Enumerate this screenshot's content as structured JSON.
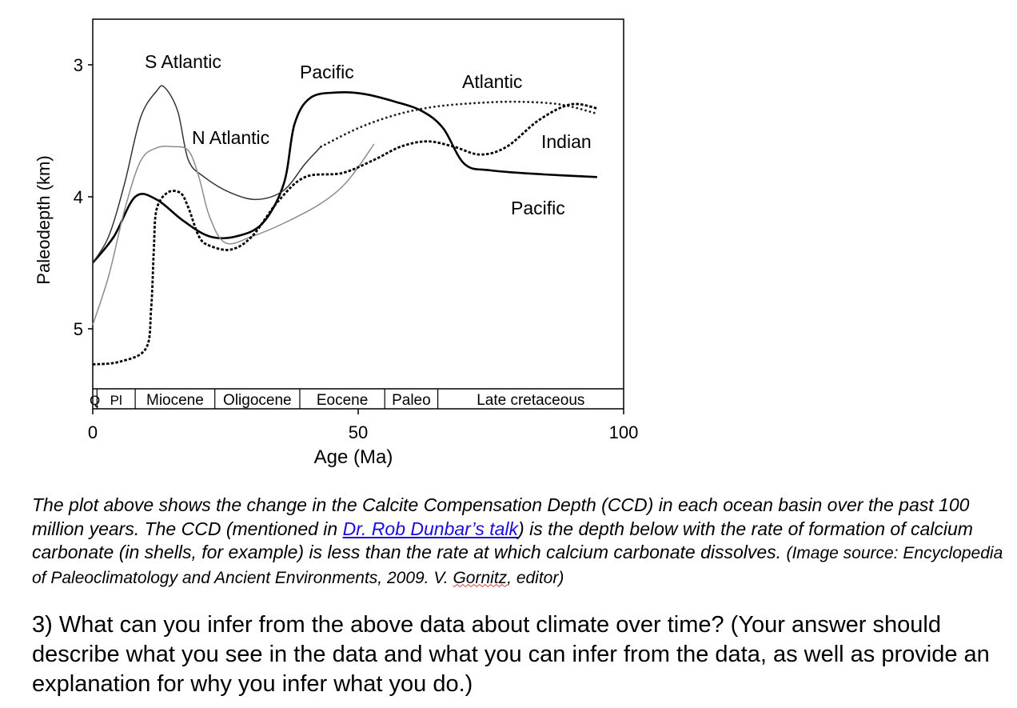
{
  "chart_data": {
    "type": "line",
    "xlabel": "Age (Ma)",
    "ylabel": "Paleodepth (km)",
    "xlim": [
      0,
      100
    ],
    "ylim": [
      5.35,
      2.65
    ],
    "y_inverted": true,
    "xticks": [
      0,
      50,
      100
    ],
    "yticks": [
      3,
      4,
      5
    ],
    "grid": false,
    "epochs": [
      {
        "label": "Q",
        "start": 0,
        "end": 0.8
      },
      {
        "label": "Pl",
        "start": 0.8,
        "end": 8
      },
      {
        "label": "Miocene",
        "start": 8,
        "end": 23
      },
      {
        "label": "Oligocene",
        "start": 23,
        "end": 39
      },
      {
        "label": "Eocene",
        "start": 39,
        "end": 55
      },
      {
        "label": "Paleo",
        "start": 55,
        "end": 65
      },
      {
        "label": "Late cretaceous",
        "start": 65,
        "end": 100
      }
    ],
    "series": [
      {
        "name": "Pacific",
        "style": "solid-thick",
        "points": [
          [
            0,
            4.5
          ],
          [
            4,
            4.3
          ],
          [
            8,
            4.0
          ],
          [
            12,
            4.02
          ],
          [
            17,
            4.18
          ],
          [
            22,
            4.3
          ],
          [
            27,
            4.3
          ],
          [
            32,
            4.2
          ],
          [
            36,
            3.9
          ],
          [
            38,
            3.45
          ],
          [
            41,
            3.25
          ],
          [
            46,
            3.21
          ],
          [
            51,
            3.22
          ],
          [
            57,
            3.28
          ],
          [
            62,
            3.35
          ],
          [
            66,
            3.48
          ],
          [
            70,
            3.75
          ],
          [
            75,
            3.8
          ],
          [
            85,
            3.83
          ],
          [
            95,
            3.85
          ]
        ]
      },
      {
        "name": "S Atlantic",
        "style": "solid-thin",
        "points": [
          [
            0,
            4.5
          ],
          [
            3,
            4.3
          ],
          [
            6,
            3.9
          ],
          [
            9,
            3.4
          ],
          [
            12,
            3.2
          ],
          [
            13.5,
            3.17
          ],
          [
            16,
            3.35
          ],
          [
            18,
            3.72
          ],
          [
            21,
            3.85
          ],
          [
            26,
            3.97
          ],
          [
            31,
            4.02
          ],
          [
            36,
            3.95
          ],
          [
            40,
            3.75
          ],
          [
            43,
            3.62
          ]
        ]
      },
      {
        "name": "N Atlantic",
        "style": "solid-gray",
        "points": [
          [
            0,
            4.97
          ],
          [
            3,
            4.6
          ],
          [
            6,
            4.1
          ],
          [
            9,
            3.73
          ],
          [
            12,
            3.63
          ],
          [
            15,
            3.62
          ],
          [
            18,
            3.65
          ],
          [
            20,
            3.85
          ],
          [
            22,
            4.15
          ],
          [
            25,
            4.35
          ],
          [
            30,
            4.3
          ],
          [
            36,
            4.2
          ],
          [
            43,
            4.05
          ],
          [
            48,
            3.88
          ],
          [
            53,
            3.6
          ]
        ]
      },
      {
        "name": "Atlantic",
        "style": "dotted",
        "points": [
          [
            43,
            3.62
          ],
          [
            50,
            3.48
          ],
          [
            57,
            3.38
          ],
          [
            64,
            3.32
          ],
          [
            72,
            3.29
          ],
          [
            80,
            3.28
          ],
          [
            88,
            3.3
          ],
          [
            95,
            3.37
          ]
        ]
      },
      {
        "name": "Indian",
        "style": "dashed",
        "points": [
          [
            0,
            5.27
          ],
          [
            5,
            5.25
          ],
          [
            10,
            5.15
          ],
          [
            11,
            4.85
          ],
          [
            11.5,
            4.4
          ],
          [
            12,
            4.1
          ],
          [
            14,
            3.97
          ],
          [
            16.5,
            3.97
          ],
          [
            18,
            4.08
          ],
          [
            20,
            4.3
          ],
          [
            22,
            4.37
          ],
          [
            26,
            4.4
          ],
          [
            30,
            4.3
          ],
          [
            35,
            4.03
          ],
          [
            40,
            3.85
          ],
          [
            47,
            3.82
          ],
          [
            53,
            3.72
          ],
          [
            58,
            3.62
          ],
          [
            63,
            3.58
          ],
          [
            68,
            3.62
          ],
          [
            73,
            3.68
          ],
          [
            78,
            3.62
          ],
          [
            84,
            3.42
          ],
          [
            90,
            3.3
          ],
          [
            95,
            3.33
          ]
        ]
      }
    ],
    "annotations": [
      "S Atlantic",
      "Pacific",
      "Atlantic",
      "N Atlantic",
      "Indian",
      "Pacific"
    ]
  },
  "caption": {
    "text1": "The plot above shows the change in the Calcite Compensation Depth (CCD) in each ocean basin over the past 100 million years. The CCD (mentioned in ",
    "link": "Dr. Rob Dunbar’s talk",
    "text2": ") is the depth below with the rate of formation of calcium carbonate (in shells, for example) is less than the rate at which calcium carbonate dissolves. ",
    "source1": "(Image source: Encyclopedia of Paleoclimatology and Ancient Environments, 2009. V. ",
    "source_name": "Gornitz",
    "source2": ", editor)"
  },
  "question": "3) What can you infer from the above data about climate over time? (Your answer should describe what you see in the data and what you can infer from the data, as well as provide an explanation for why you infer what you do.)"
}
